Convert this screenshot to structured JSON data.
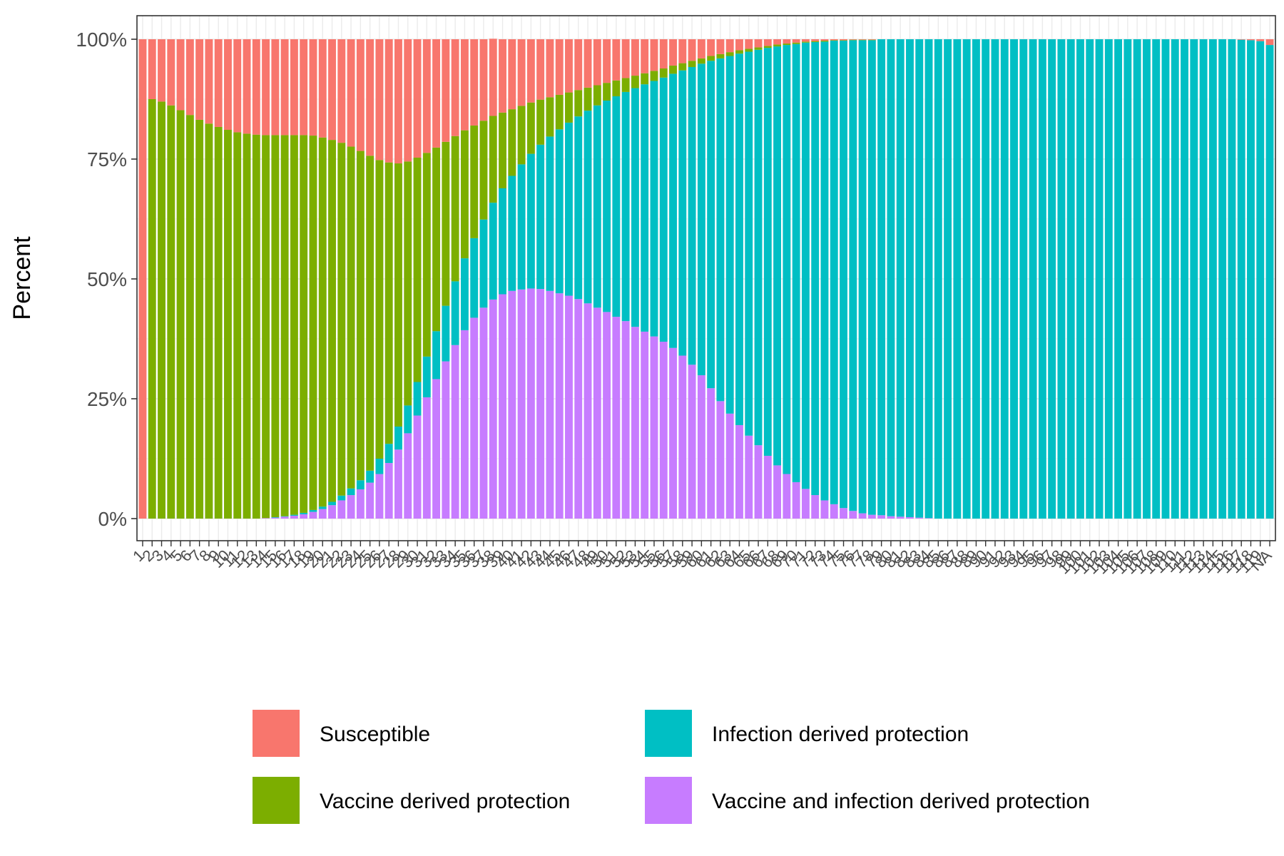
{
  "chart_data": {
    "type": "bar",
    "stacked": true,
    "ylabel": "Percent",
    "xlabel": "",
    "ylim": [
      0,
      1
    ],
    "y_ticks": [
      "0%",
      "25%",
      "50%",
      "75%",
      "100%"
    ],
    "categories": [
      "1",
      "2",
      "3",
      "4",
      "5",
      "6",
      "7",
      "8",
      "9",
      "10",
      "11",
      "12",
      "13",
      "14",
      "15",
      "16",
      "17",
      "18",
      "19",
      "20",
      "21",
      "22",
      "23",
      "24",
      "25",
      "26",
      "27",
      "28",
      "29",
      "30",
      "31",
      "32",
      "33",
      "34",
      "35",
      "36",
      "37",
      "38",
      "39",
      "40",
      "41",
      "42",
      "43",
      "44",
      "45",
      "46",
      "47",
      "48",
      "49",
      "50",
      "51",
      "52",
      "53",
      "54",
      "55",
      "56",
      "57",
      "58",
      "59",
      "60",
      "61",
      "62",
      "63",
      "64",
      "65",
      "66",
      "67",
      "68",
      "69",
      "70",
      "71",
      "72",
      "73",
      "74",
      "75",
      "76",
      "77",
      "78",
      "79",
      "80",
      "81",
      "82",
      "83",
      "84",
      "85",
      "86",
      "87",
      "88",
      "89",
      "90",
      "91",
      "92",
      "93",
      "94",
      "95",
      "96",
      "97",
      "98",
      "99",
      "100",
      "101",
      "102",
      "103",
      "104",
      "105",
      "106",
      "107",
      "108",
      "109",
      "110",
      "111",
      "112",
      "113",
      "114",
      "115",
      "116",
      "117",
      "118",
      "119",
      "NA"
    ],
    "series": [
      {
        "name": "Susceptible",
        "color": "#F8766D",
        "values": [
          1.0,
          0.125,
          0.13,
          0.138,
          0.148,
          0.158,
          0.168,
          0.176,
          0.183,
          0.189,
          0.194,
          0.197,
          0.199,
          0.2,
          0.2,
          0.2,
          0.2,
          0.2,
          0.201,
          0.205,
          0.21,
          0.216,
          0.224,
          0.233,
          0.243,
          0.252,
          0.257,
          0.259,
          0.255,
          0.247,
          0.237,
          0.226,
          0.214,
          0.202,
          0.19,
          0.18,
          0.17,
          0.161,
          0.153,
          0.146,
          0.139,
          0.132,
          0.126,
          0.121,
          0.116,
          0.111,
          0.106,
          0.101,
          0.096,
          0.091,
          0.086,
          0.081,
          0.076,
          0.071,
          0.066,
          0.061,
          0.055,
          0.05,
          0.045,
          0.04,
          0.035,
          0.031,
          0.027,
          0.023,
          0.02,
          0.017,
          0.014,
          0.011,
          0.009,
          0.007,
          0.005,
          0.004,
          0.003,
          0.002,
          0.002,
          0.001,
          0.001,
          0.001,
          0.0,
          0.0,
          0.0,
          0.0,
          0.0,
          0.0,
          0.0,
          0.0,
          0.0,
          0.0,
          0.0,
          0.0,
          0.0,
          0.0,
          0.0,
          0.0,
          0.0,
          0.0,
          0.0,
          0.0,
          0.0,
          0.0,
          0.0,
          0.0,
          0.0,
          0.0,
          0.0,
          0.0,
          0.0,
          0.0,
          0.0,
          0.0,
          0.0,
          0.0,
          0.0,
          0.0,
          0.0,
          0.0,
          0.001,
          0.002,
          0.004,
          0.012
        ]
      },
      {
        "name": "Vaccine derived protection",
        "color": "#7CAE00",
        "values": [
          0.0,
          0.875,
          0.87,
          0.862,
          0.852,
          0.842,
          0.832,
          0.824,
          0.817,
          0.811,
          0.806,
          0.803,
          0.801,
          0.799,
          0.797,
          0.795,
          0.792,
          0.788,
          0.781,
          0.77,
          0.755,
          0.736,
          0.713,
          0.687,
          0.657,
          0.623,
          0.587,
          0.549,
          0.509,
          0.468,
          0.425,
          0.383,
          0.342,
          0.303,
          0.267,
          0.235,
          0.206,
          0.181,
          0.158,
          0.139,
          0.122,
          0.107,
          0.094,
          0.082,
          0.072,
          0.063,
          0.055,
          0.048,
          0.042,
          0.037,
          0.033,
          0.029,
          0.026,
          0.023,
          0.021,
          0.019,
          0.017,
          0.015,
          0.013,
          0.011,
          0.01,
          0.009,
          0.008,
          0.007,
          0.006,
          0.005,
          0.004,
          0.004,
          0.003,
          0.003,
          0.002,
          0.002,
          0.002,
          0.001,
          0.001,
          0.001,
          0.001,
          0.001,
          0.0,
          0.0,
          0.0,
          0.0,
          0.0,
          0.0,
          0.0,
          0.0,
          0.0,
          0.0,
          0.0,
          0.0,
          0.0,
          0.0,
          0.0,
          0.0,
          0.0,
          0.0,
          0.0,
          0.0,
          0.0,
          0.0,
          0.0,
          0.0,
          0.0,
          0.0,
          0.0,
          0.0,
          0.0,
          0.0,
          0.0,
          0.0,
          0.0,
          0.0,
          0.0,
          0.0,
          0.0,
          0.0,
          0.0,
          0.0,
          0.0,
          0.0
        ]
      },
      {
        "name": "Infection derived protection",
        "color": "#00BFC4",
        "values": [
          0.0,
          0.0,
          0.0,
          0.0,
          0.0,
          0.0,
          0.0,
          0.0,
          0.0,
          0.0,
          0.0,
          0.0,
          0.0,
          0.0,
          0.001,
          0.001,
          0.002,
          0.003,
          0.004,
          0.005,
          0.007,
          0.01,
          0.014,
          0.019,
          0.025,
          0.032,
          0.04,
          0.048,
          0.058,
          0.07,
          0.085,
          0.1,
          0.116,
          0.133,
          0.15,
          0.166,
          0.184,
          0.202,
          0.221,
          0.24,
          0.261,
          0.281,
          0.301,
          0.322,
          0.342,
          0.361,
          0.381,
          0.402,
          0.422,
          0.441,
          0.46,
          0.478,
          0.498,
          0.516,
          0.533,
          0.551,
          0.572,
          0.595,
          0.621,
          0.65,
          0.683,
          0.715,
          0.746,
          0.775,
          0.801,
          0.825,
          0.851,
          0.874,
          0.895,
          0.914,
          0.931,
          0.945,
          0.957,
          0.967,
          0.975,
          0.982,
          0.987,
          0.99,
          0.993,
          0.995,
          0.996,
          0.997,
          0.998,
          0.999,
          1.0,
          1.0,
          1.0,
          1.0,
          1.0,
          1.0,
          1.0,
          1.0,
          1.0,
          1.0,
          1.0,
          1.0,
          1.0,
          1.0,
          1.0,
          1.0,
          1.0,
          1.0,
          1.0,
          1.0,
          1.0,
          1.0,
          1.0,
          1.0,
          1.0,
          1.0,
          1.0,
          1.0,
          1.0,
          1.0,
          1.0,
          1.0,
          0.999,
          0.998,
          0.996,
          0.988
        ]
      },
      {
        "name": "Vaccine and infection derived protection",
        "color": "#C77CFF",
        "values": [
          0.0,
          0.0,
          0.0,
          0.0,
          0.0,
          0.0,
          0.0,
          0.0,
          0.0,
          0.0,
          0.0,
          0.0,
          0.0,
          0.001,
          0.002,
          0.004,
          0.006,
          0.009,
          0.014,
          0.02,
          0.028,
          0.038,
          0.049,
          0.061,
          0.075,
          0.093,
          0.116,
          0.144,
          0.178,
          0.215,
          0.253,
          0.291,
          0.328,
          0.362,
          0.393,
          0.419,
          0.44,
          0.457,
          0.468,
          0.475,
          0.478,
          0.48,
          0.479,
          0.475,
          0.47,
          0.465,
          0.458,
          0.449,
          0.44,
          0.431,
          0.421,
          0.412,
          0.4,
          0.39,
          0.38,
          0.369,
          0.356,
          0.34,
          0.321,
          0.299,
          0.272,
          0.245,
          0.219,
          0.195,
          0.173,
          0.153,
          0.131,
          0.111,
          0.093,
          0.076,
          0.062,
          0.049,
          0.038,
          0.03,
          0.022,
          0.016,
          0.011,
          0.008,
          0.007,
          0.005,
          0.004,
          0.003,
          0.002,
          0.001,
          0.0,
          0.0,
          0.0,
          0.0,
          0.0,
          0.0,
          0.0,
          0.0,
          0.0,
          0.0,
          0.0,
          0.0,
          0.0,
          0.0,
          0.0,
          0.0,
          0.0,
          0.0,
          0.0,
          0.0,
          0.0,
          0.0,
          0.0,
          0.0,
          0.0,
          0.0,
          0.0,
          0.0,
          0.0,
          0.0,
          0.0,
          0.0,
          0.0,
          0.0,
          0.0,
          0.0
        ]
      }
    ],
    "stack_order_bottom_to_top": [
      "Vaccine and infection derived protection",
      "Infection derived protection",
      "Vaccine derived protection",
      "Susceptible"
    ],
    "legend": {
      "position": "bottom",
      "entries": [
        {
          "label": "Susceptible",
          "color": "#F8766D"
        },
        {
          "label": "Infection derived protection",
          "color": "#00BFC4"
        },
        {
          "label": "Vaccine derived protection",
          "color": "#7CAE00"
        },
        {
          "label": "Vaccine and infection derived protection",
          "color": "#C77CFF"
        }
      ]
    },
    "grid": true,
    "theme": "bw"
  }
}
